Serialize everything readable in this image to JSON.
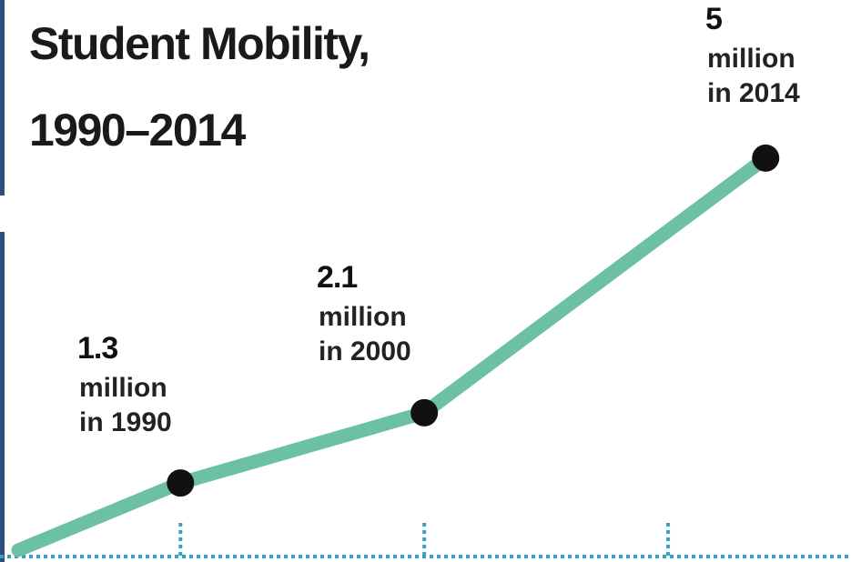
{
  "chart_data": {
    "type": "line",
    "title": [
      "Student Mobility,",
      "1990–2014"
    ],
    "x": [
      1990,
      2000,
      2014
    ],
    "series": [
      {
        "name": "Student Mobility",
        "color": "#6cc0a6",
        "values": [
          1.3,
          2.1,
          5.0
        ]
      }
    ],
    "annotations": [
      [
        "million",
        "in 1990"
      ],
      [
        "million",
        "in 2000"
      ],
      [
        "million",
        "in 2014"
      ]
    ],
    "xlim": [
      1982.6,
      2017.5
    ],
    "xticks": [
      1990,
      2000,
      2010
    ],
    "ylim": [
      0.4,
      6.8
    ]
  }
}
